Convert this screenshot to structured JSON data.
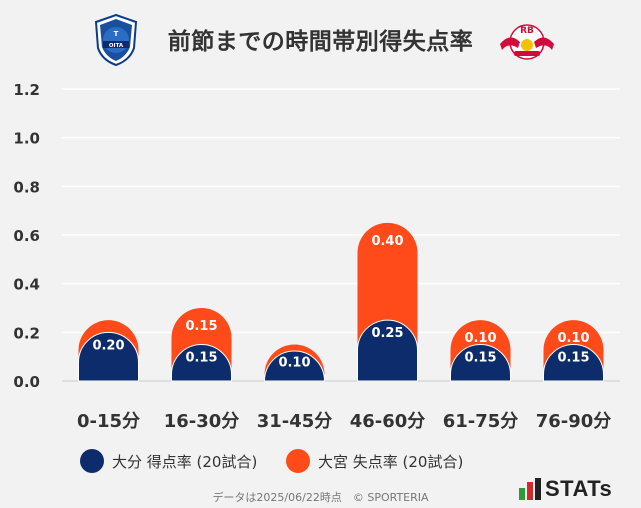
{
  "title": "前節までの時間帯別得失点率",
  "colors": {
    "scored": "#0d2c6b",
    "conceded": "#ff4a19",
    "grid": "#ffffff",
    "background": "#f2f2f2"
  },
  "legend": [
    {
      "label": "大分 得点率 (20試合)",
      "color": "#0d2c6b"
    },
    {
      "label": "大宮 失点率 (20試合)",
      "color": "#ff4a19"
    }
  ],
  "footer": "データは2025/06/22時点　© SPORTERIA",
  "brand": "STATs",
  "logos": {
    "right_text": "RB"
  },
  "chart_data": {
    "type": "bar",
    "stacked": true,
    "categories": [
      "0-15分",
      "16-30分",
      "31-45分",
      "46-60分",
      "61-75分",
      "76-90分"
    ],
    "series": [
      {
        "name": "大分 得点率 (20試合)",
        "values": [
          0.2,
          0.15,
          0.05,
          0.25,
          0.15,
          0.15
        ]
      },
      {
        "name": "大宮 失点率 (20試合)",
        "values": [
          0.05,
          0.15,
          0.1,
          0.4,
          0.1,
          0.1
        ]
      }
    ],
    "value_labels": [
      [
        "0.20",
        "0.15",
        "",
        "0.25",
        "0.15",
        "0.15"
      ],
      [
        "",
        "0.15",
        "0.10",
        "0.40",
        "0.10",
        "0.10"
      ]
    ],
    "yticks": [
      "0.0",
      "0.2",
      "0.4",
      "0.6",
      "0.8",
      "1.0",
      "1.2"
    ],
    "ylim": [
      0,
      1.2
    ],
    "grid": true
  }
}
